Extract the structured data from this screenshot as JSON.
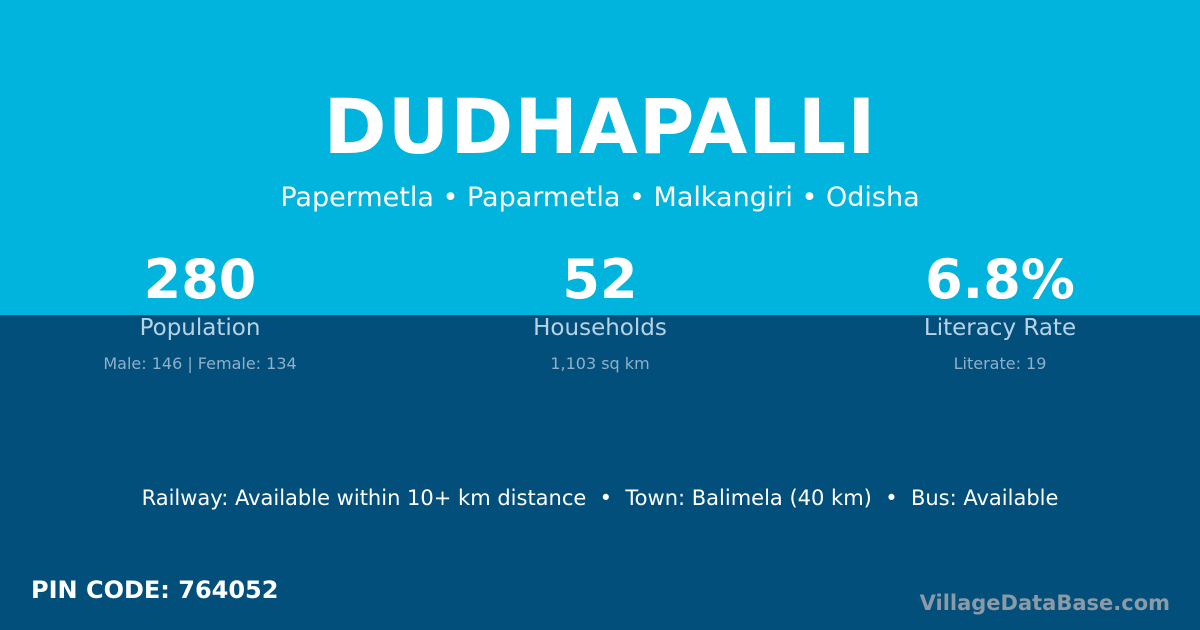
{
  "colors": {
    "top_band": "#01b4dd",
    "bottom_band": "#034f7b",
    "watermark": "#8a9aa6"
  },
  "title": "DUDHAPALLI",
  "subtitle": "Papermetla • Paparmetla • Malkangiri • Odisha",
  "stats": [
    {
      "value": "280",
      "label": "Population",
      "detail": "Male: 146 | Female: 134"
    },
    {
      "value": "52",
      "label": "Households",
      "detail": "1,103 sq km"
    },
    {
      "value": "6.8%",
      "label": "Literacy Rate",
      "detail": "Literate: 19"
    }
  ],
  "info_line": "Railway: Available within 10+ km distance  •  Town: Balimela (40 km)  •  Bus: Available",
  "pin_code": "PIN CODE: 764052",
  "watermark": "VillageDataBase.com"
}
